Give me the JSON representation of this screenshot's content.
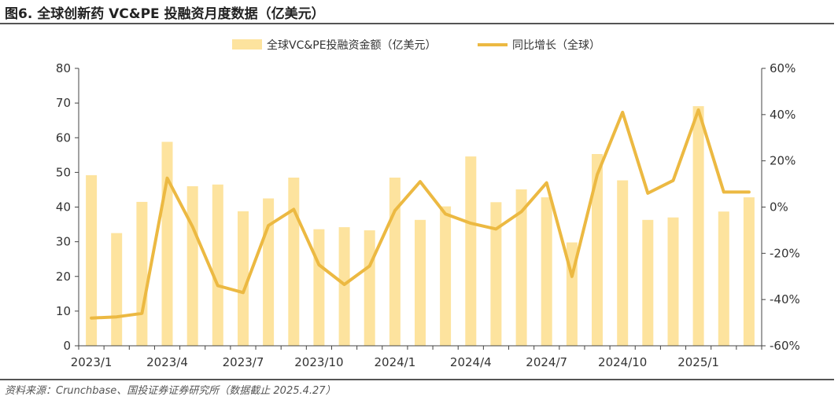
{
  "header": {
    "title": "图6. 全球创新药 VC&PE 投融资月度数据（亿美元）"
  },
  "footer": {
    "source": "资料来源：Crunchbase、国投证券证券研究所（数据截止 2025.4.27）"
  },
  "colors": {
    "bar": "#fde39e",
    "line": "#ecb942",
    "axis": "#444444",
    "text": "#333333"
  },
  "chart_data": {
    "type": "bar",
    "title": "",
    "xlabel": "",
    "ylabel": "",
    "y2label": "",
    "ylim": [
      0,
      80
    ],
    "y2lim": [
      -0.6,
      0.6
    ],
    "yticks": [
      0,
      10,
      20,
      30,
      40,
      50,
      60,
      70,
      80
    ],
    "y2ticks": [
      "-60%",
      "-40%",
      "-20%",
      "0%",
      "20%",
      "40%",
      "60%"
    ],
    "legend_position": "top",
    "grid": false,
    "categories": [
      "2023/1",
      "2023/2",
      "2023/3",
      "2023/4",
      "2023/5",
      "2023/6",
      "2023/7",
      "2023/8",
      "2023/9",
      "2023/10",
      "2023/11",
      "2023/12",
      "2024/1",
      "2024/2",
      "2024/3",
      "2024/4",
      "2024/5",
      "2024/6",
      "2024/7",
      "2024/8",
      "2024/9",
      "2024/10",
      "2024/11",
      "2024/12",
      "2025/1",
      "2025/2",
      "2025/3"
    ],
    "xticklabels": [
      "2023/1",
      "2023/4",
      "2023/7",
      "2023/10",
      "2024/1",
      "2024/4",
      "2024/7",
      "2024/10",
      "2025/1"
    ],
    "series": [
      {
        "name": "全球VC&PE投融资金额（亿美元）",
        "type": "bar",
        "axis": "left",
        "values": [
          49.2,
          32.5,
          41.5,
          58.8,
          46.0,
          46.5,
          38.8,
          42.5,
          48.5,
          33.6,
          34.2,
          33.3,
          48.5,
          36.3,
          40.2,
          54.6,
          41.4,
          45.1,
          42.8,
          29.8,
          55.3,
          47.7,
          36.3,
          37.0,
          69.1,
          38.7,
          42.8
        ]
      },
      {
        "name": "同比增长（全球）",
        "type": "line",
        "axis": "right",
        "values": [
          -0.48,
          -0.475,
          -0.46,
          0.125,
          -0.085,
          -0.34,
          -0.37,
          -0.08,
          -0.01,
          -0.25,
          -0.335,
          -0.255,
          -0.015,
          0.11,
          -0.03,
          -0.07,
          -0.095,
          -0.02,
          0.105,
          -0.3,
          0.14,
          0.41,
          0.06,
          0.115,
          0.42,
          0.065,
          0.065
        ]
      }
    ]
  }
}
